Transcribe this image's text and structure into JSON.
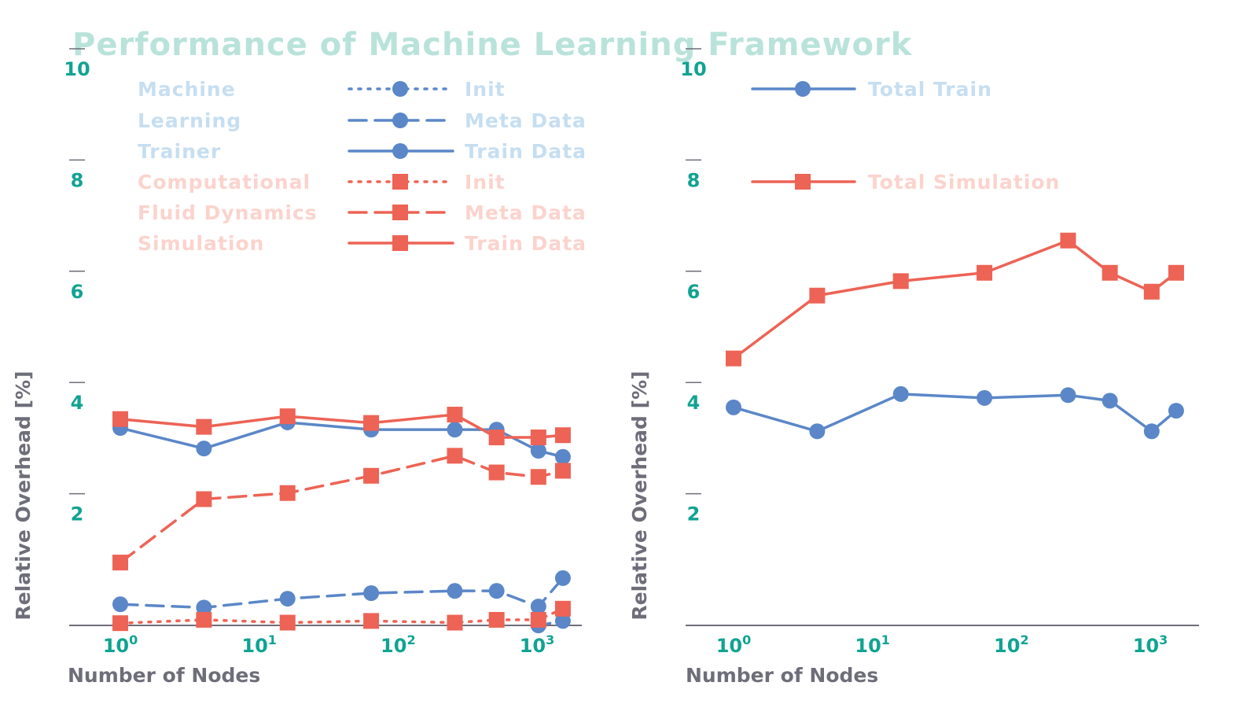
{
  "title": "Performance of Machine Learning Framework",
  "colors": {
    "title": "#b9e3da",
    "tick": "#10a392",
    "axis": "#6e6e7a",
    "blue": "#5b87c8",
    "red": "#ed6355",
    "group_blue_text": "#c6def1",
    "group_red_text": "#fbd3cd"
  },
  "chart_data": [
    {
      "type": "line",
      "xscale": "log",
      "xlabel": "Number of Nodes",
      "ylabel": "Relative Overhead [%]",
      "ylim": [
        0,
        10
      ],
      "yticks": [
        "2",
        "4",
        "6",
        "8",
        "10"
      ],
      "xticks": [
        {
          "base": "10",
          "exp": "0"
        },
        {
          "base": "10",
          "exp": "1"
        },
        {
          "base": "10",
          "exp": "2"
        },
        {
          "base": "10",
          "exp": "3"
        }
      ],
      "x": [
        1,
        4,
        16,
        64,
        256,
        512,
        1024,
        1536
      ],
      "legend": {
        "groups": [
          {
            "lines": [
              "Machine",
              "Learning",
              "Trainer"
            ]
          },
          {
            "lines": [
              "Computational",
              "Fluid Dynamics",
              "Simulation"
            ]
          }
        ],
        "entries": [
          "Init",
          "Meta Data",
          "Train Data",
          "Init",
          "Meta Data",
          "Train Data"
        ]
      },
      "series": [
        {
          "name": "Init",
          "group": "Machine Learning Trainer",
          "color": "blue",
          "marker": "circle",
          "dash": "dotted",
          "values": [
            null,
            null,
            null,
            null,
            null,
            null,
            0.0,
            0.08
          ]
        },
        {
          "name": "Meta Data",
          "group": "Machine Learning Trainer",
          "color": "blue",
          "marker": "circle",
          "dash": "dashed",
          "values": [
            0.38,
            0.32,
            0.48,
            0.58,
            0.62,
            0.62,
            0.34,
            0.85
          ]
        },
        {
          "name": "Train Data",
          "group": "Machine Learning Trainer",
          "color": "blue",
          "marker": "circle",
          "dash": "solid",
          "values": [
            3.55,
            3.18,
            3.65,
            3.52,
            3.52,
            3.52,
            3.14,
            3.03
          ]
        },
        {
          "name": "Init",
          "group": "Computational Fluid Dynamics Simulation",
          "color": "red",
          "marker": "square",
          "dash": "dotted",
          "values": [
            0.04,
            0.1,
            0.05,
            0.08,
            0.05,
            0.1,
            0.1,
            0.3
          ]
        },
        {
          "name": "Meta Data",
          "group": "Computational Fluid Dynamics Simulation",
          "color": "red",
          "marker": "square",
          "dash": "dashed",
          "values": [
            1.13,
            2.27,
            2.38,
            2.69,
            3.05,
            2.75,
            2.67,
            2.78
          ]
        },
        {
          "name": "Train Data",
          "group": "Computational Fluid Dynamics Simulation",
          "color": "red",
          "marker": "square",
          "dash": "solid",
          "values": [
            3.71,
            3.57,
            3.76,
            3.64,
            3.79,
            3.38,
            3.38,
            3.42
          ]
        }
      ]
    },
    {
      "type": "line",
      "xscale": "log",
      "xlabel": "Number of Nodes",
      "ylabel": "Relative Overhead [%]",
      "ylim": [
        0,
        10
      ],
      "yticks": [
        "2",
        "4",
        "6",
        "8",
        "10"
      ],
      "xticks": [
        {
          "base": "10",
          "exp": "0"
        },
        {
          "base": "10",
          "exp": "1"
        },
        {
          "base": "10",
          "exp": "2"
        },
        {
          "base": "10",
          "exp": "3"
        }
      ],
      "x": [
        1,
        4,
        16,
        64,
        256,
        512,
        1024,
        1536
      ],
      "series": [
        {
          "name": "Total Train",
          "color": "blue",
          "marker": "circle",
          "dash": "solid",
          "values": [
            3.92,
            3.49,
            4.16,
            4.09,
            4.14,
            4.04,
            3.49,
            3.86
          ]
        },
        {
          "name": "Total Simulation",
          "color": "red",
          "marker": "square",
          "dash": "solid",
          "values": [
            4.8,
            5.93,
            6.19,
            6.34,
            6.92,
            6.34,
            6.0,
            6.34
          ]
        }
      ]
    }
  ]
}
